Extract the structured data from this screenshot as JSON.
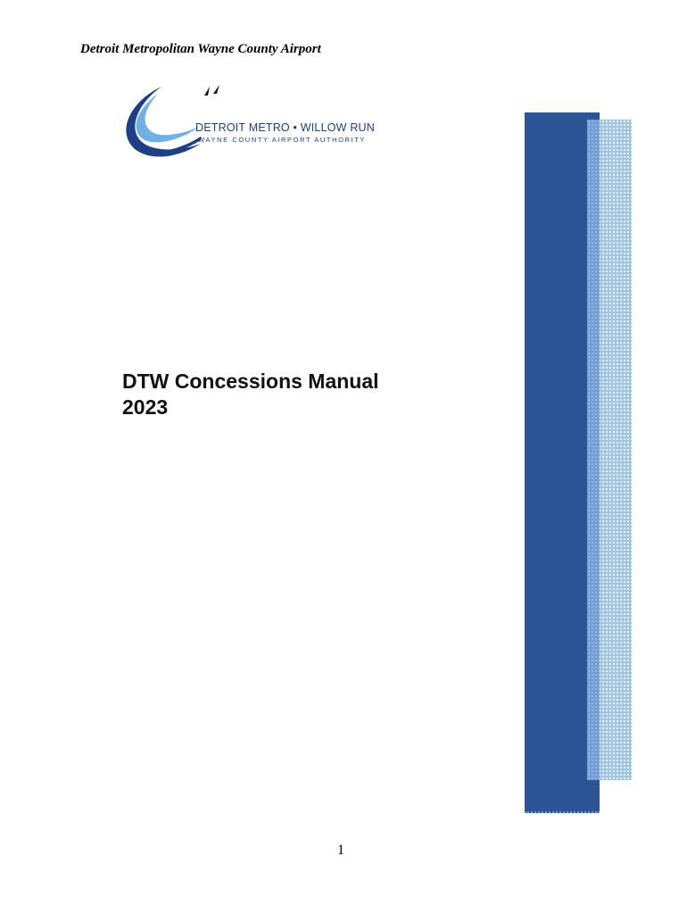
{
  "header": {
    "title": "Detroit Metropolitan Wayne County Airport"
  },
  "logo": {
    "name_line": "DETROIT METRO • WILLOW RUN",
    "sub_line": "WAYNE COUNTY AIRPORT AUTHORITY",
    "icon": "swoosh-birds-logo-icon",
    "colors": {
      "dark_blue": "#1d3f87",
      "light_blue": "#6fb0e6"
    }
  },
  "document": {
    "title_line1": "DTW Concessions Manual",
    "title_line2": "2023"
  },
  "decoration": {
    "bar_dark_color": "#2c5597",
    "bar_light_color": "#9fc4ec"
  },
  "footer": {
    "page_number": "1"
  }
}
